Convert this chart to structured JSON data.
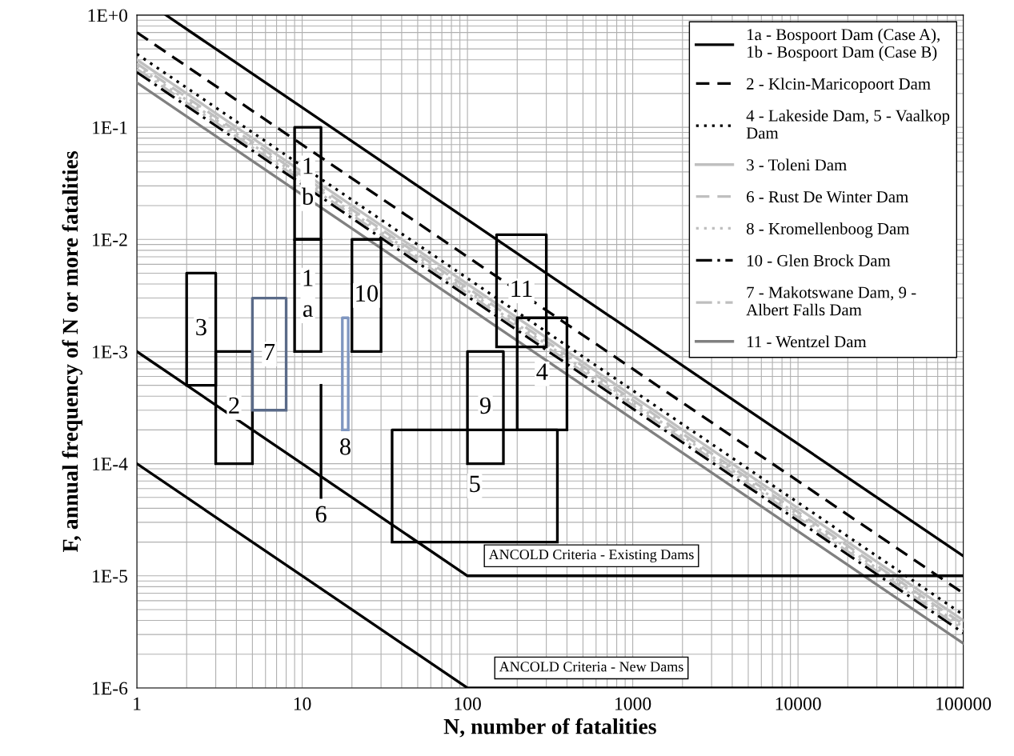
{
  "chart_data": {
    "type": "line",
    "xlabel": "N, number of fatalities",
    "ylabel": "F, annual frequency of N or more fatalities",
    "log": "xy",
    "grid": true,
    "legend": "top right",
    "marker": "none",
    "xlim": [
      1,
      100000
    ],
    "xticks": [
      1,
      10,
      100,
      1000,
      10000,
      100000
    ],
    "ylim": [
      1e-06,
      1
    ],
    "yticks": [
      {
        "value": 1e-06,
        "label": "1E-6"
      },
      {
        "value": 1e-05,
        "label": "1E-5"
      },
      {
        "value": 0.0001,
        "label": "1E-4"
      },
      {
        "value": 0.001,
        "label": "1E-3"
      },
      {
        "value": 0.01,
        "label": "1E-2"
      },
      {
        "value": 0.1,
        "label": "1E-1"
      },
      {
        "value": 1,
        "label": "1E+0"
      }
    ],
    "series": [
      {
        "name": "1a - Bospoort Dam (Case A),\n1b - Bospoort Dam (Case B)",
        "color": "#000000",
        "line_style": "solid",
        "x": [
          1.5,
          100000
        ],
        "values": [
          1,
          1.5e-05
        ]
      },
      {
        "name": "2 - Klcin-Maricopoort Dam",
        "color": "#000000",
        "line_style": "dashed",
        "x": [
          1,
          100000
        ],
        "values": [
          0.7,
          7e-06
        ]
      },
      {
        "name": "4 - Lakeside Dam, 5 - Vaalkop\nDam",
        "color": "#000000",
        "line_style": "dotted",
        "x": [
          1,
          100000
        ],
        "values": [
          0.45,
          4.5e-06
        ]
      },
      {
        "name": "3 - Toleni Dam",
        "color": "#bfbfbf",
        "line_style": "solid",
        "x": [
          1,
          100000
        ],
        "values": [
          0.4,
          4e-06
        ]
      },
      {
        "name": "6 - Rust De Winter Dam",
        "color": "#bfbfbf",
        "line_style": "dashed",
        "x": [
          1,
          100000
        ],
        "values": [
          0.37,
          3.7e-06
        ]
      },
      {
        "name": "8 - Kromellenboog Dam",
        "color": "#bfbfbf",
        "line_style": "dotted",
        "x": [
          1,
          100000
        ],
        "values": [
          0.35,
          3.5e-06
        ]
      },
      {
        "name": "10 - Glen Brock Dam",
        "color": "#000000",
        "line_style": "dashdot",
        "x": [
          1,
          100000
        ],
        "values": [
          0.31,
          3.1e-06
        ]
      },
      {
        "name": "7 - Makotswane Dam, 9 -\nAlbert Falls Dam",
        "color": "#bfbfbf",
        "line_style": "dashdot",
        "x": [
          1,
          100000
        ],
        "values": [
          0.33,
          3.3e-06
        ]
      },
      {
        "name": "11 - Wentzel Dam",
        "color": "#808080",
        "line_style": "solid",
        "x": [
          1,
          100000
        ],
        "values": [
          0.25,
          2.5e-06
        ]
      },
      {
        "color": "#000000",
        "x": [
          1,
          100,
          100000
        ],
        "values": [
          0.001,
          1e-05,
          1e-05
        ]
      },
      {
        "color": "#000000",
        "x": [
          1,
          100,
          100000
        ],
        "values": [
          0.0001,
          1e-06,
          1e-06
        ]
      },
      {
        "color": "#000000",
        "x": [
          2,
          3,
          3,
          2,
          2,
          3
        ],
        "values": [
          0.0005,
          0.0005,
          0.005,
          0.005,
          0.0005,
          0.0005
        ]
      },
      {
        "color": "#000000",
        "x": [
          3,
          5,
          5,
          3,
          3,
          5
        ],
        "values": [
          0.0001,
          0.0001,
          0.001,
          0.001,
          0.0001,
          0.0001
        ]
      },
      {
        "color": "#5a6a88",
        "x": [
          5,
          8,
          8,
          5,
          5,
          8
        ],
        "values": [
          0.0003,
          0.0003,
          0.003,
          0.003,
          0.0003,
          0.0003
        ]
      },
      {
        "color": "#000000",
        "x": [
          9,
          13,
          13,
          9,
          9,
          13
        ],
        "values": [
          0.001,
          0.001,
          0.01,
          0.01,
          0.001,
          0.001
        ]
      },
      {
        "color": "#000000",
        "x": [
          9,
          13,
          13,
          9,
          9,
          13
        ],
        "values": [
          0.01,
          0.01,
          0.1,
          0.1,
          0.01,
          0.01
        ]
      },
      {
        "color": "#000000",
        "x": [
          13,
          13
        ],
        "values": [
          5e-05,
          0.0005
        ]
      },
      {
        "color": "#7f96c0",
        "x": [
          17.5,
          19,
          19,
          17.5,
          17.5,
          19
        ],
        "values": [
          0.0002,
          0.0002,
          0.002,
          0.002,
          0.0002,
          0.0002
        ]
      },
      {
        "color": "#000000",
        "x": [
          20,
          30,
          30,
          20,
          20,
          30
        ],
        "values": [
          0.001,
          0.001,
          0.01,
          0.01,
          0.001,
          0.001
        ]
      },
      {
        "color": "#000000",
        "x": [
          35,
          350,
          350,
          35,
          35,
          350
        ],
        "values": [
          2e-05,
          2e-05,
          0.0002,
          0.0002,
          2e-05,
          2e-05
        ]
      },
      {
        "color": "#000000",
        "x": [
          100,
          165,
          165,
          100,
          100,
          165
        ],
        "values": [
          0.0001,
          0.0001,
          0.001,
          0.001,
          0.0001,
          0.0001
        ]
      },
      {
        "color": "#000000",
        "x": [
          200,
          400,
          400,
          200,
          200,
          400
        ],
        "values": [
          0.0002,
          0.0002,
          0.002,
          0.002,
          0.0002,
          0.0002
        ]
      },
      {
        "color": "#000000",
        "x": [
          150,
          300,
          300,
          150,
          150,
          300
        ],
        "values": [
          0.0011,
          0.0011,
          0.011,
          0.011,
          0.0011,
          0.0011
        ]
      }
    ],
    "annotations": [
      "ANCOLD Criteria - Existing Dams",
      "ANCOLD Criteria - New Dams",
      "3",
      "2",
      "7",
      "1\na",
      "1\nb",
      "6",
      "8",
      "10",
      "5",
      "9",
      "4",
      "11"
    ]
  }
}
